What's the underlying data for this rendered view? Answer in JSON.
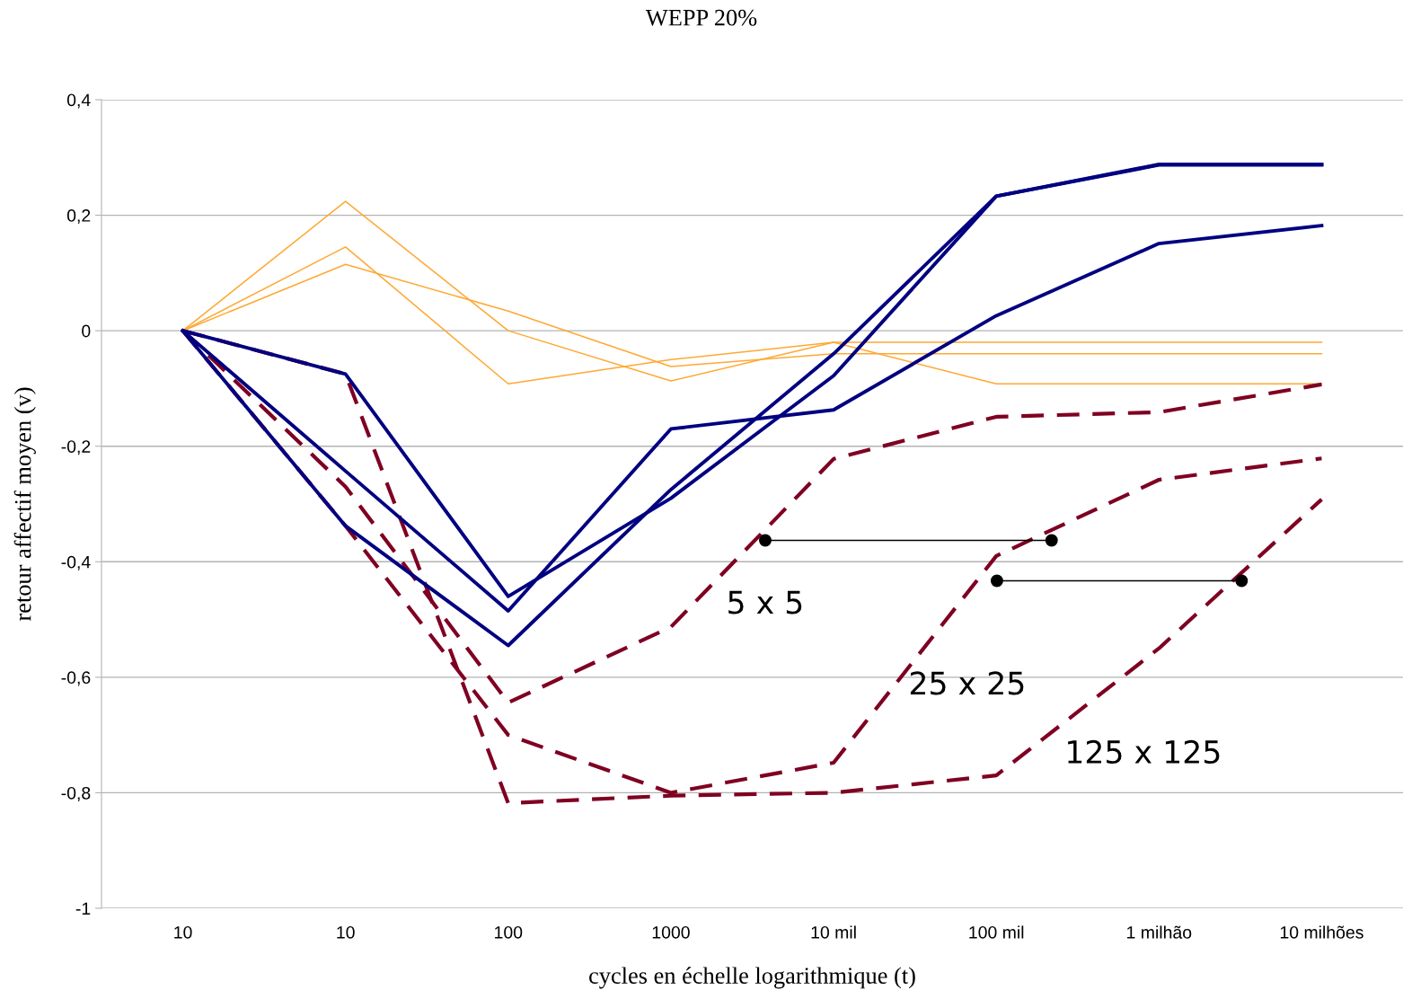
{
  "chart_data": {
    "type": "line",
    "title": "WEPP 20%",
    "xlabel": "cycles en échelle logarithmique (t)",
    "ylabel": "retour affectif moyen (v)",
    "categories": [
      "10",
      "10",
      "100",
      "1000",
      "10 mil",
      "100 mil",
      "1 milhão",
      "10 milhões"
    ],
    "series": [
      {
        "color": "#ffa833",
        "values": [
          0,
          0.224,
          0,
          -0.087,
          -0.02,
          -0.092,
          -0.092,
          -0.092
        ]
      },
      {
        "color": "#ffa833",
        "values": [
          0,
          0.115,
          0.034,
          -0.062,
          -0.04,
          -0.04,
          -0.04,
          -0.04
        ]
      },
      {
        "color": "#ffa833",
        "values": [
          0,
          0.145,
          -0.092,
          -0.05,
          -0.02,
          -0.02,
          -0.02,
          -0.02
        ]
      },
      {
        "color": "#000080",
        "values": [
          0,
          -0.075,
          -0.46,
          -0.29,
          -0.078,
          0.233,
          0.287,
          0.287
        ]
      },
      {
        "color": "#000080",
        "values": [
          0,
          -0.243,
          -0.485,
          -0.17,
          -0.137,
          0.026,
          0.151,
          0.182
        ]
      },
      {
        "color": "#000080",
        "values": [
          0,
          -0.338,
          -0.545,
          -0.275,
          -0.04,
          0.233,
          0.288,
          0.288
        ]
      },
      {
        "name": "5 x 5",
        "color": "#7f0022",
        "line_style": "dashed",
        "values": [
          0,
          -0.27,
          -0.644,
          -0.513,
          -0.222,
          -0.149,
          -0.141,
          -0.093
        ]
      },
      {
        "name": "25 x 25",
        "color": "#7f0022",
        "line_style": "dashed",
        "values": [
          0,
          -0.338,
          -0.7,
          -0.8,
          -0.748,
          -0.39,
          -0.258,
          -0.221
        ]
      },
      {
        "name": "125 x 125",
        "color": "#7f0022",
        "line_style": "dashed",
        "values": [
          0,
          -0.075,
          -0.818,
          -0.805,
          -0.8,
          -0.77,
          -0.55,
          -0.292
        ]
      }
    ],
    "ylim": [
      -1,
      0.4
    ],
    "yticks": [
      {
        "value": -1,
        "label": "-1"
      },
      {
        "value": -0.8,
        "label": "-0,8"
      },
      {
        "value": -0.6,
        "label": "-0,6"
      },
      {
        "value": -0.4,
        "label": "-0,4"
      },
      {
        "value": -0.2,
        "label": "-0,2"
      },
      0,
      {
        "value": 0.2,
        "label": "0,2"
      },
      {
        "value": 0.4,
        "label": "0,4"
      }
    ],
    "grid": "y",
    "marker": "none",
    "line_style": "solid"
  }
}
